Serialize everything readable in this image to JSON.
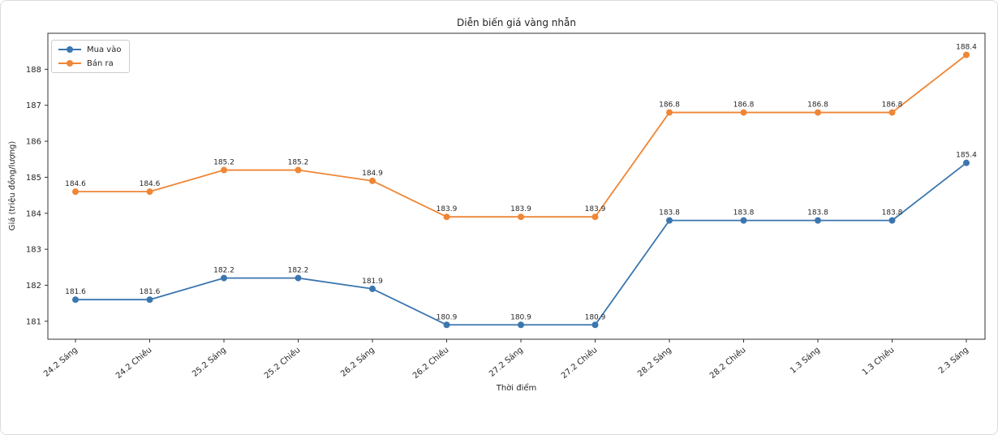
{
  "chart_data": {
    "type": "line",
    "title": "Diễn biến giá vàng nhẫn",
    "xlabel": "Thời điểm",
    "ylabel": "Giá (triệu đồng/lượng)",
    "categories": [
      "24.2 Sáng",
      "24.2 Chiều",
      "25.2 Sáng",
      "25.2 Chiều",
      "26.2 Sáng",
      "26.2 Chiều",
      "27.2 Sáng",
      "27.2 Chiều",
      "28.2 Sáng",
      "28.2 Chiều",
      "1.3 Sáng",
      "1.3 Chiều",
      "2.3 Sáng"
    ],
    "series": [
      {
        "name": "Mua vào",
        "color": "#3b76af",
        "values": [
          181.6,
          181.6,
          182.2,
          182.2,
          181.9,
          180.9,
          180.9,
          180.9,
          183.8,
          183.8,
          183.8,
          183.8,
          185.4
        ]
      },
      {
        "name": "Bán ra",
        "color": "#ef8636",
        "values": [
          184.6,
          184.6,
          185.2,
          185.2,
          184.9,
          183.9,
          183.9,
          183.9,
          186.8,
          186.8,
          186.8,
          186.8,
          188.4
        ]
      }
    ],
    "yticks": [
      181,
      182,
      183,
      184,
      185,
      186,
      187,
      188
    ],
    "ylim": [
      180.5,
      189.0
    ],
    "xtick_rotation": -40,
    "grid": false,
    "legend_position": "upper-left",
    "point_labels": true,
    "axis_color": "#333333",
    "text_color": "#262626"
  }
}
